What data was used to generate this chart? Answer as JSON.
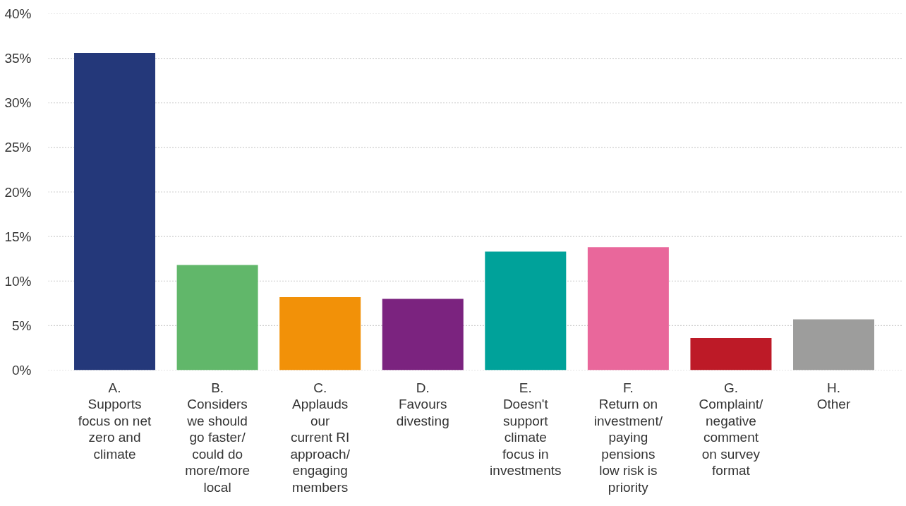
{
  "chart_data": {
    "type": "bar",
    "categories": [
      "A.\nSupports\nfocus on net\nzero and\nclimate",
      "B.\nConsiders\nwe should\ngo faster/\ncould do\nmore/more\nlocal",
      "C.\nApplauds\nour\ncurrent RI\napproach/\nengaging\nmembers",
      "D.\nFavours\ndivesting",
      "E.\nDoesn't\nsupport\nclimate\nfocus in\ninvestments",
      "F.\nReturn on\ninvestment/\npaying\npensions\nlow risk is\npriority",
      "G.\nComplaint/\nnegative\ncomment\non survey\nformat",
      "H.\nOther"
    ],
    "values": [
      35.6,
      11.8,
      8.2,
      8.0,
      13.3,
      13.8,
      3.6,
      5.7
    ],
    "colors": [
      "#24387a",
      "#61b76a",
      "#f29108",
      "#7b237f",
      "#00a29a",
      "#e9679b",
      "#bd1a27",
      "#9d9d9c"
    ],
    "ylim": [
      0,
      40
    ],
    "yticks": [
      {
        "value": 0,
        "label": "0%"
      },
      {
        "value": 5,
        "label": "5%"
      },
      {
        "value": 10,
        "label": "10%"
      },
      {
        "value": 15,
        "label": "15%"
      },
      {
        "value": 20,
        "label": "20%"
      },
      {
        "value": 25,
        "label": "25%"
      },
      {
        "value": 30,
        "label": "30%"
      },
      {
        "value": 35,
        "label": "35%"
      },
      {
        "value": 40,
        "label": "40%"
      }
    ],
    "grid": "y"
  }
}
